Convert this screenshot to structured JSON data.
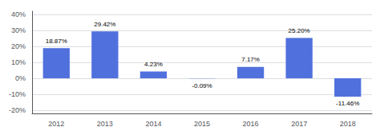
{
  "chart_data": {
    "type": "bar",
    "categories": [
      "2012",
      "2013",
      "2014",
      "2015",
      "2016",
      "2017",
      "2018"
    ],
    "values": [
      18.87,
      29.42,
      4.23,
      -0.09,
      7.17,
      25.2,
      -11.46
    ],
    "value_labels": [
      "18.87%",
      "29.42%",
      "4.23%",
      "-0.09%",
      "7.17%",
      "25.20%",
      "-11.46%"
    ],
    "data_labels": true,
    "ylim": [
      -22,
      42
    ],
    "yticks": [
      {
        "value": -20,
        "label": "-20%"
      },
      {
        "value": -10,
        "label": "-10%"
      },
      {
        "value": 0,
        "label": "0%"
      },
      {
        "value": 10,
        "label": "10%"
      },
      {
        "value": 20,
        "label": "20%"
      },
      {
        "value": 30,
        "label": "30%"
      },
      {
        "value": 40,
        "label": "40%"
      }
    ],
    "grid": true
  }
}
